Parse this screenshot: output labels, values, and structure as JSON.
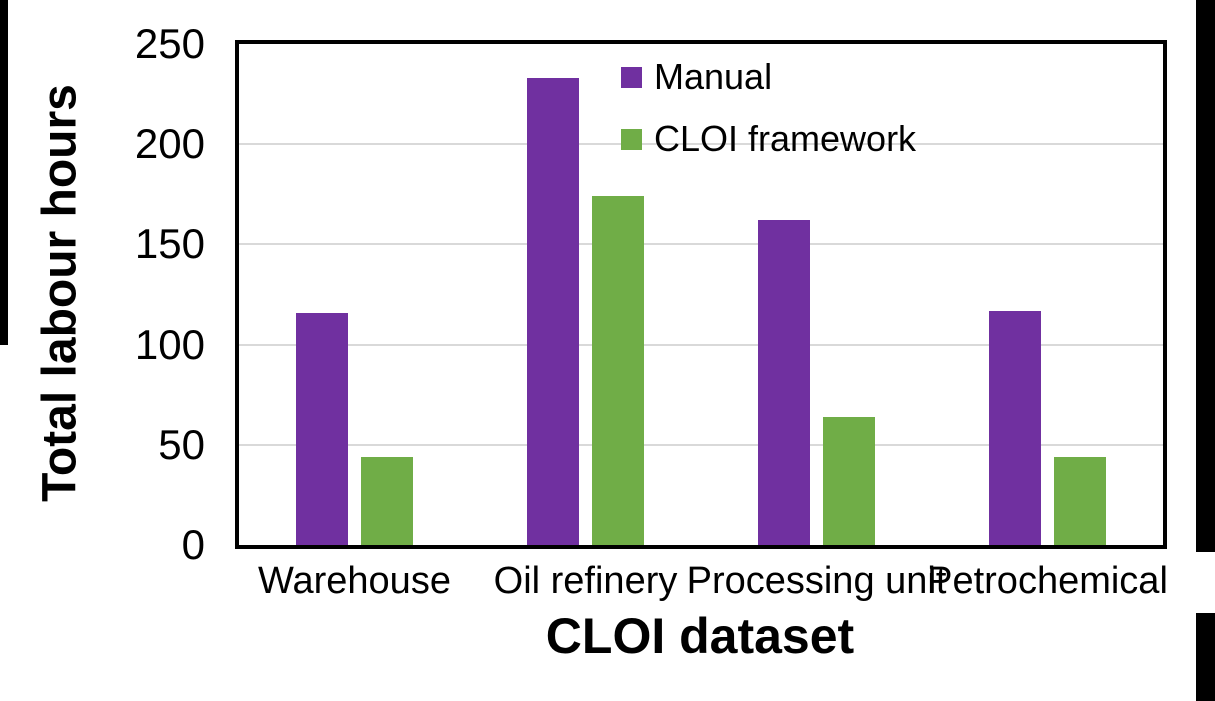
{
  "chart_data": {
    "type": "bar",
    "title": "",
    "categories": [
      "Warehouse",
      "Oil refinery",
      "Processing unit",
      "Petrochemical"
    ],
    "series": [
      {
        "name": "Manual",
        "color": "#7030A0",
        "values": [
          116,
          233,
          162,
          117
        ]
      },
      {
        "name": "CLOI framework",
        "color": "#70AD47",
        "values": [
          44,
          174,
          64,
          44
        ]
      }
    ],
    "xlabel": "CLOI dataset",
    "ylabel": "Total labour hours",
    "ylim": [
      0,
      250
    ],
    "yticks": [
      0,
      50,
      100,
      150,
      200,
      250
    ],
    "gridline_values": [
      50,
      100,
      150,
      200
    ],
    "grid": "horizontal",
    "gridline_color": "#D9D9D9",
    "legend_position": "top-right-inside",
    "axis_color": "#000000"
  }
}
